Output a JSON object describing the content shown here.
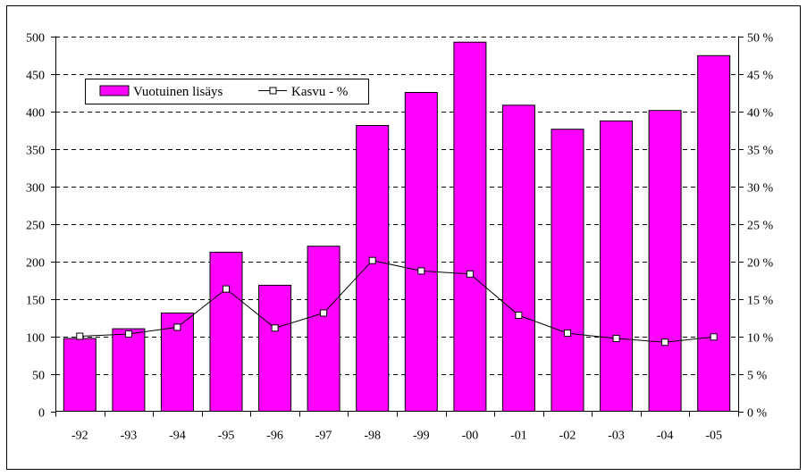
{
  "chart_data": {
    "type": "bar",
    "categories": [
      "-92",
      "-93",
      "-94",
      "-95",
      "-96",
      "-97",
      "-98",
      "-99",
      "-00",
      "-01",
      "-02",
      "-03",
      "-04",
      "-05"
    ],
    "series": [
      {
        "name": "Vuotuinen lisäys",
        "type": "bar",
        "axis": "left",
        "color": "#ff00ff",
        "values": [
          97,
          110,
          131,
          212,
          168,
          220,
          381,
          425,
          492,
          408,
          376,
          387,
          401,
          474
        ]
      },
      {
        "name": "Kasvu - %",
        "type": "line",
        "axis": "right",
        "color": "#000000",
        "marker": "open-square",
        "values": [
          10.0,
          10.3,
          11.2,
          16.3,
          11.1,
          13.1,
          20.1,
          18.7,
          18.3,
          12.8,
          10.4,
          9.7,
          9.2,
          9.9
        ]
      }
    ],
    "y_left": {
      "ylim": [
        0,
        500
      ],
      "ticks": [
        0,
        50,
        100,
        150,
        200,
        250,
        300,
        350,
        400,
        450,
        500
      ]
    },
    "y_right": {
      "ylim": [
        0,
        50
      ],
      "ticks": [
        0,
        5,
        10,
        15,
        20,
        25,
        30,
        35,
        40,
        45,
        50
      ],
      "tick_suffix": " %"
    },
    "grid": "horizontal-dashed",
    "legend": "top-left",
    "title": "",
    "xlabel": "",
    "ylabel": ""
  }
}
